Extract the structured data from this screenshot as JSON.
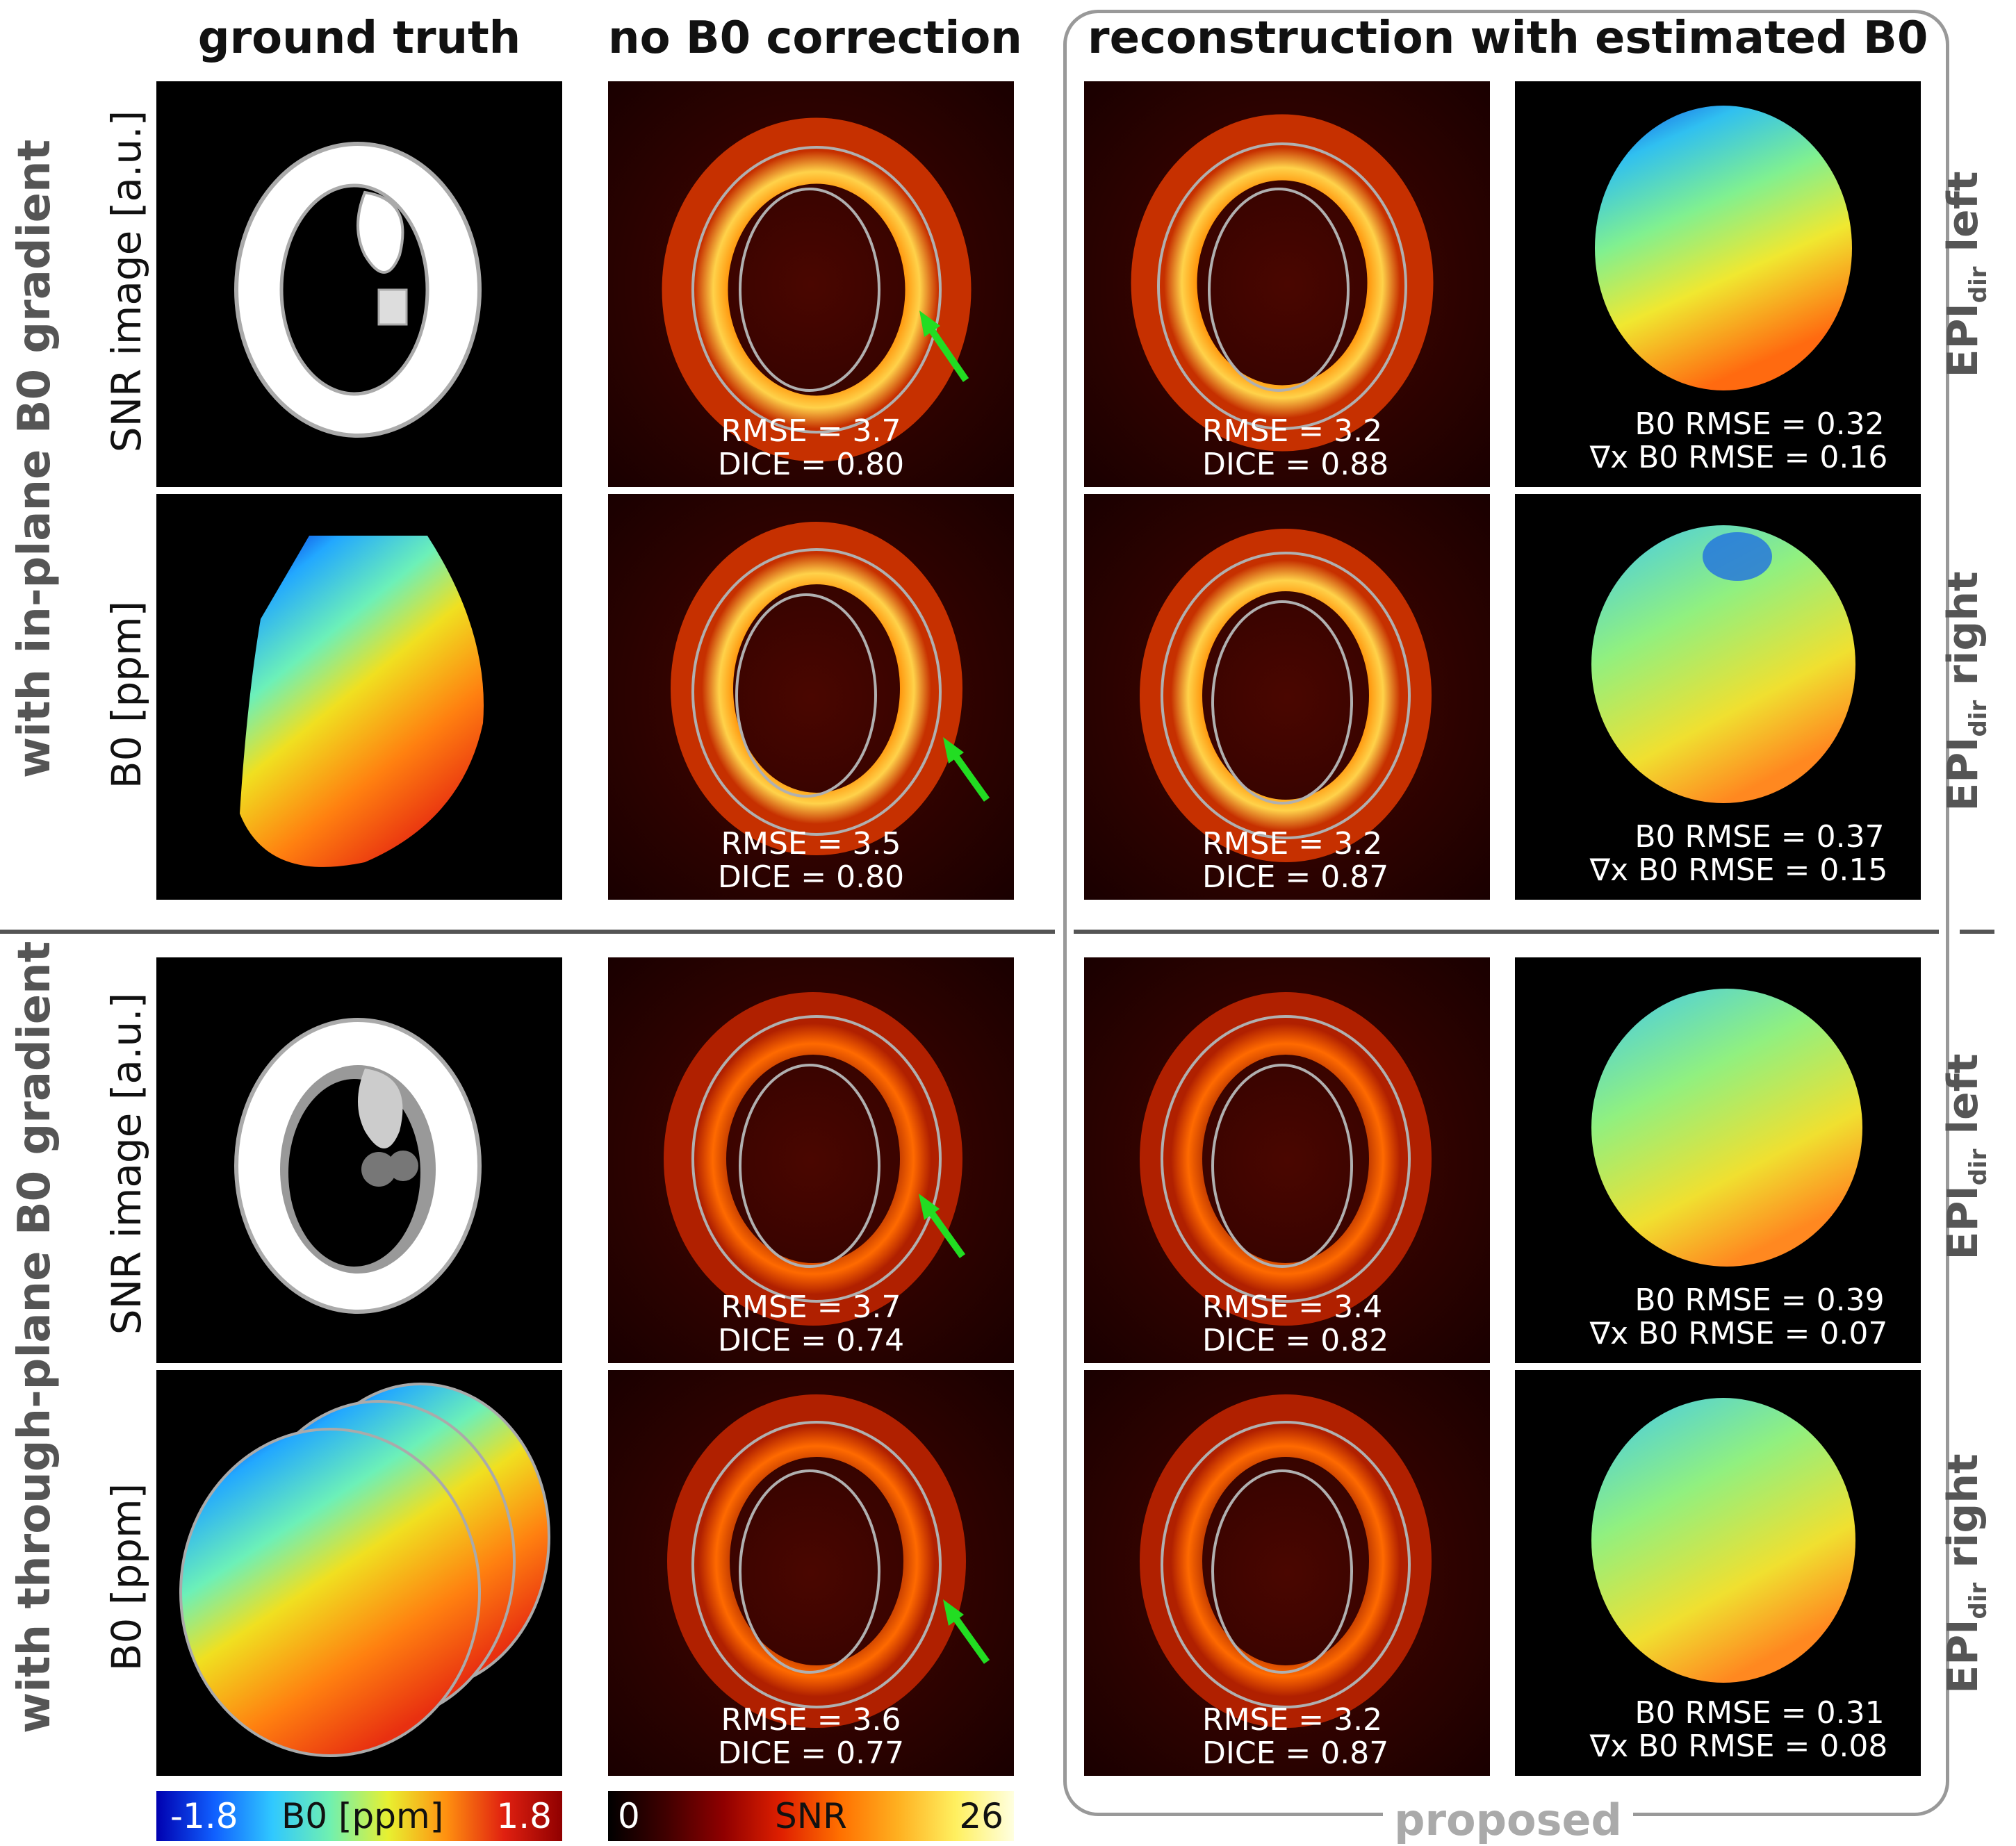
{
  "headers": {
    "ground_truth": "ground truth",
    "no_b0": "no B0 correction",
    "recon": "reconstruction with estimated B0"
  },
  "row_groups": {
    "in_plane": "with in-plane B0 gradient",
    "through_plane": "with through-plane B0 gradient"
  },
  "row_labels": {
    "snr_top": "SNR image [a.u.]",
    "b0_top": "B0 [ppm]",
    "snr_bottom": "SNR image [a.u.]",
    "b0_bottom": "B0 [ppm]"
  },
  "epi_labels": [
    {
      "pre": "EPI",
      "sub": "dir",
      "post": " left"
    },
    {
      "pre": "EPI",
      "sub": "dir",
      "post": " right"
    },
    {
      "pre": "EPI",
      "sub": "dir",
      "post": " left"
    },
    {
      "pre": "EPI",
      "sub": "dir",
      "post": " right"
    }
  ],
  "no_b0_metrics": [
    {
      "rmse": "RMSE = 3.7",
      "dice": "DICE = 0.80"
    },
    {
      "rmse": "RMSE = 3.5",
      "dice": "DICE = 0.80"
    },
    {
      "rmse": "RMSE = 3.7",
      "dice": "DICE = 0.74"
    },
    {
      "rmse": "RMSE = 3.6",
      "dice": "DICE = 0.77"
    }
  ],
  "recon_metrics": [
    {
      "rmse": "RMSE = 3.2",
      "dice": "DICE = 0.88"
    },
    {
      "rmse": "RMSE = 3.2",
      "dice": "DICE = 0.87"
    },
    {
      "rmse": "RMSE = 3.4",
      "dice": "DICE = 0.82"
    },
    {
      "rmse": "RMSE = 3.2",
      "dice": "DICE = 0.87"
    }
  ],
  "b0_est_metrics": [
    {
      "b0": "B0 RMSE = 0.32",
      "grad": "∇x B0 RMSE = 0.16"
    },
    {
      "b0": "B0 RMSE = 0.37",
      "grad": "∇x B0 RMSE = 0.15"
    },
    {
      "b0": "B0 RMSE = 0.39",
      "grad": "∇x B0 RMSE = 0.07"
    },
    {
      "b0": "B0 RMSE = 0.31",
      "grad": "∇x B0 RMSE = 0.08"
    }
  ],
  "colorbar_b0": {
    "min": "-1.8",
    "label": "B0 [ppm]",
    "max": "1.8"
  },
  "colorbar_snr": {
    "min": "0",
    "label": "SNR",
    "max": "26"
  },
  "proposed_label": "proposed",
  "colors": {
    "arrow": "#22dd22",
    "contour": "#b0b0b0",
    "frame": "#999999"
  }
}
